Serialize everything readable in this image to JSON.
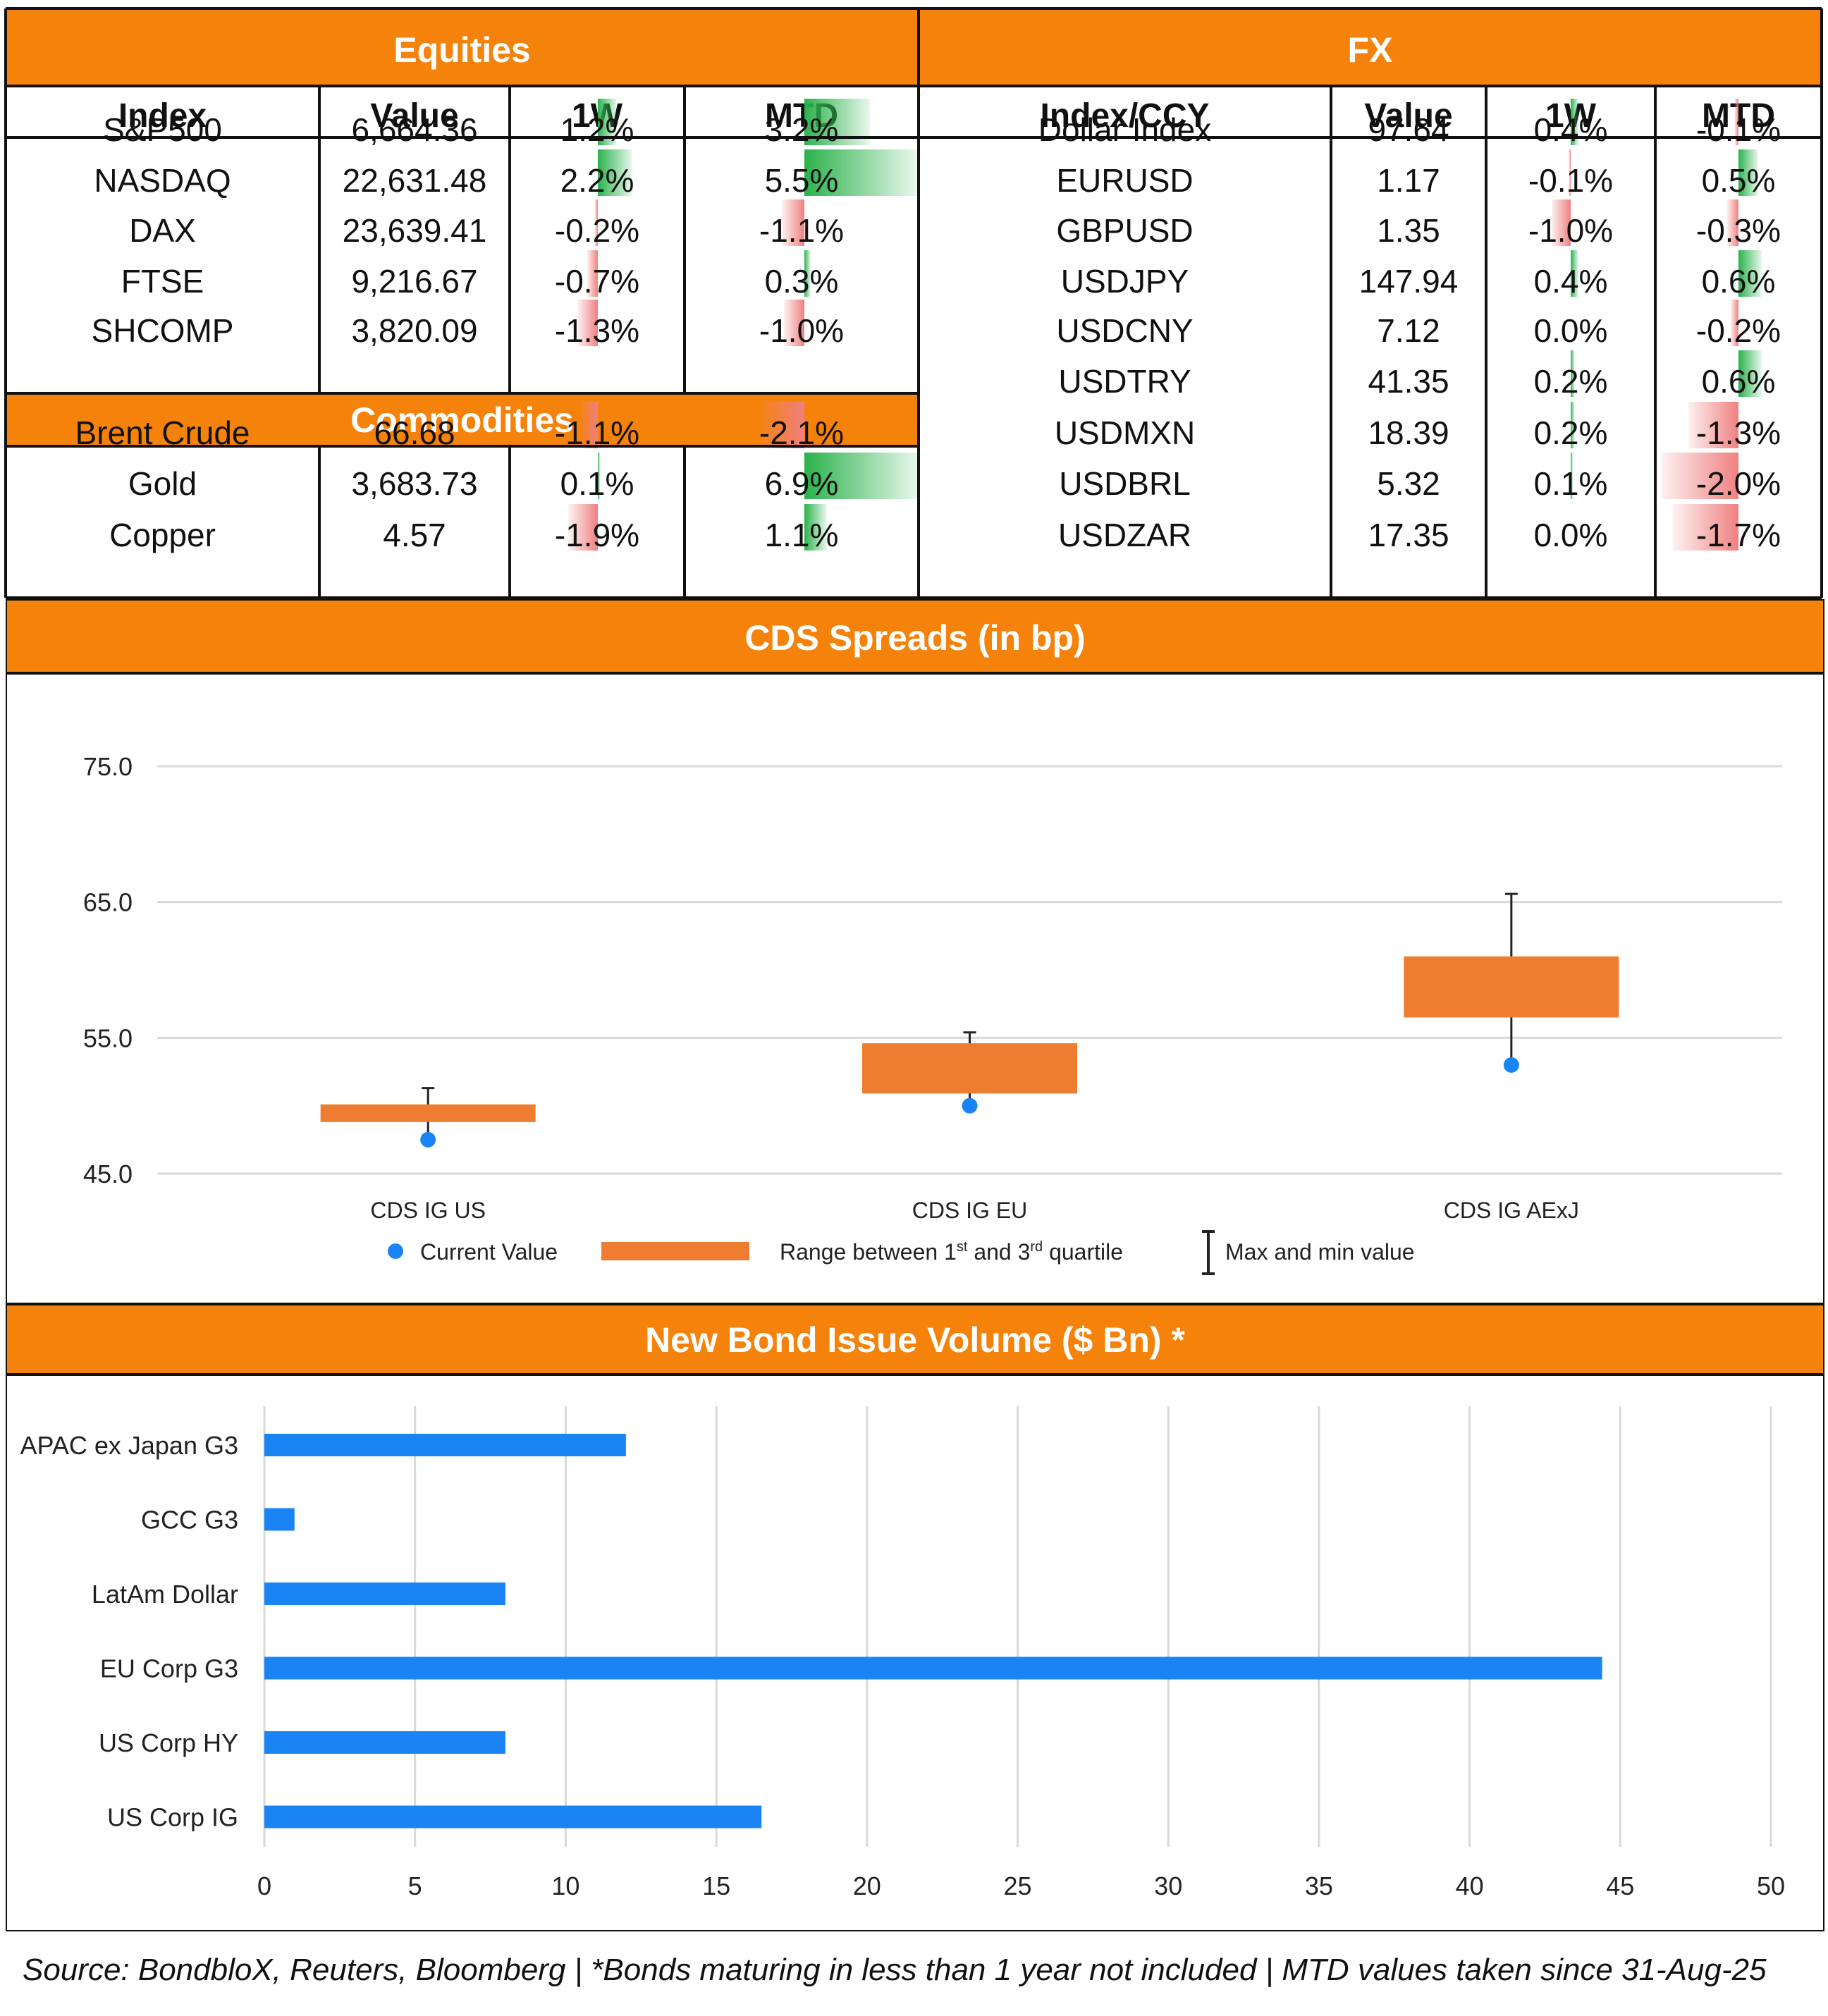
{
  "colors": {
    "header_orange": "#f5820a",
    "header_text": "#ffffff",
    "positive": "#2bb24c",
    "negative": "#f08080",
    "cds_box": "#ee7d31",
    "cds_point": "#1a84f5",
    "bond_bar": "#1a84f5"
  },
  "equities": {
    "title": "Equities",
    "columns": [
      "Index",
      "Value",
      "1W",
      "MTD"
    ],
    "rows": [
      {
        "name": "S&P500",
        "value": "6,664.36",
        "w1": "1.2%",
        "mtd": "3.2%"
      },
      {
        "name": "NASDAQ",
        "value": "22,631.48",
        "w1": "2.2%",
        "mtd": "5.5%"
      },
      {
        "name": "DAX",
        "value": "23,639.41",
        "w1": "-0.2%",
        "mtd": "-1.1%"
      },
      {
        "name": "FTSE",
        "value": "9,216.67",
        "w1": "-0.7%",
        "mtd": "0.3%"
      },
      {
        "name": "SHCOMP",
        "value": "3,820.09",
        "w1": "-1.3%",
        "mtd": "-1.0%"
      }
    ]
  },
  "commodities": {
    "title": "Commodities",
    "rows": [
      {
        "name": "Brent Crude",
        "value": "66.68",
        "w1": "-1.1%",
        "mtd": "-2.1%"
      },
      {
        "name": "Gold",
        "value": "3,683.73",
        "w1": "0.1%",
        "mtd": "6.9%"
      },
      {
        "name": "Copper",
        "value": "4.57",
        "w1": "-1.9%",
        "mtd": "1.1%"
      }
    ]
  },
  "fx": {
    "title": "FX",
    "columns": [
      "Index/CCY",
      "Value",
      "1W",
      "MTD"
    ],
    "rows": [
      {
        "name": "Dollar Index",
        "value": "97.64",
        "w1": "0.4%",
        "mtd": "-0.1%"
      },
      {
        "name": "EURUSD",
        "value": "1.17",
        "w1": "-0.1%",
        "mtd": "0.5%"
      },
      {
        "name": "GBPUSD",
        "value": "1.35",
        "w1": "-1.0%",
        "mtd": "-0.3%"
      },
      {
        "name": "USDJPY",
        "value": "147.94",
        "w1": "0.4%",
        "mtd": "0.6%"
      },
      {
        "name": "USDCNY",
        "value": "7.12",
        "w1": "0.0%",
        "mtd": "-0.2%"
      },
      {
        "name": "USDTRY",
        "value": "41.35",
        "w1": "0.2%",
        "mtd": "0.6%"
      },
      {
        "name": "USDMXN",
        "value": "18.39",
        "w1": "0.2%",
        "mtd": "-1.3%"
      },
      {
        "name": "USDBRL",
        "value": "5.32",
        "w1": "0.1%",
        "mtd": "-2.0%"
      },
      {
        "name": "USDZAR",
        "value": "17.35",
        "w1": "0.0%",
        "mtd": "-1.7%"
      }
    ]
  },
  "chart_data": [
    {
      "type": "box",
      "title": "CDS Spreads (in bp)",
      "categories": [
        "CDS IG US",
        "CDS IG EU",
        "CDS IG AExJ"
      ],
      "q1": [
        48.8,
        50.9,
        56.5
      ],
      "q3": [
        50.1,
        54.6,
        61.0
      ],
      "min": [
        47.8,
        50.5,
        53.5
      ],
      "max": [
        51.3,
        55.4,
        65.6
      ],
      "current": [
        47.5,
        50.0,
        53.0
      ],
      "ylim": [
        45.0,
        75.0
      ],
      "yticks": [
        "75.0",
        "65.0",
        "55.0",
        "45.0"
      ],
      "ytick_values": [
        75,
        65,
        55,
        45
      ],
      "legend": {
        "current": "Current Value",
        "range_pre": "Range between 1",
        "range_sup1": "st",
        "range_mid": " and 3",
        "range_sup2": "rd",
        "range_post": " quartile",
        "maxmin": "Max and min value"
      }
    },
    {
      "type": "bar",
      "orientation": "horizontal",
      "title": "New Bond Issue Volume ($ Bn) *",
      "categories": [
        "APAC ex Japan G3",
        "GCC G3",
        "LatAm Dollar",
        "EU Corp G3",
        "US Corp HY",
        "US Corp IG"
      ],
      "values": [
        12,
        1,
        8,
        44.4,
        8,
        16.5
      ],
      "xlim": [
        0,
        50
      ],
      "xticks": [
        "0",
        "5",
        "10",
        "15",
        "20",
        "25",
        "30",
        "35",
        "40",
        "45",
        "50"
      ],
      "xtick_values": [
        0,
        5,
        10,
        15,
        20,
        25,
        30,
        35,
        40,
        45,
        50
      ]
    }
  ],
  "source": "Source: BondbloX, Reuters, Bloomberg | *Bonds maturing in less than 1 year not included | MTD values taken since 31-Aug-25"
}
